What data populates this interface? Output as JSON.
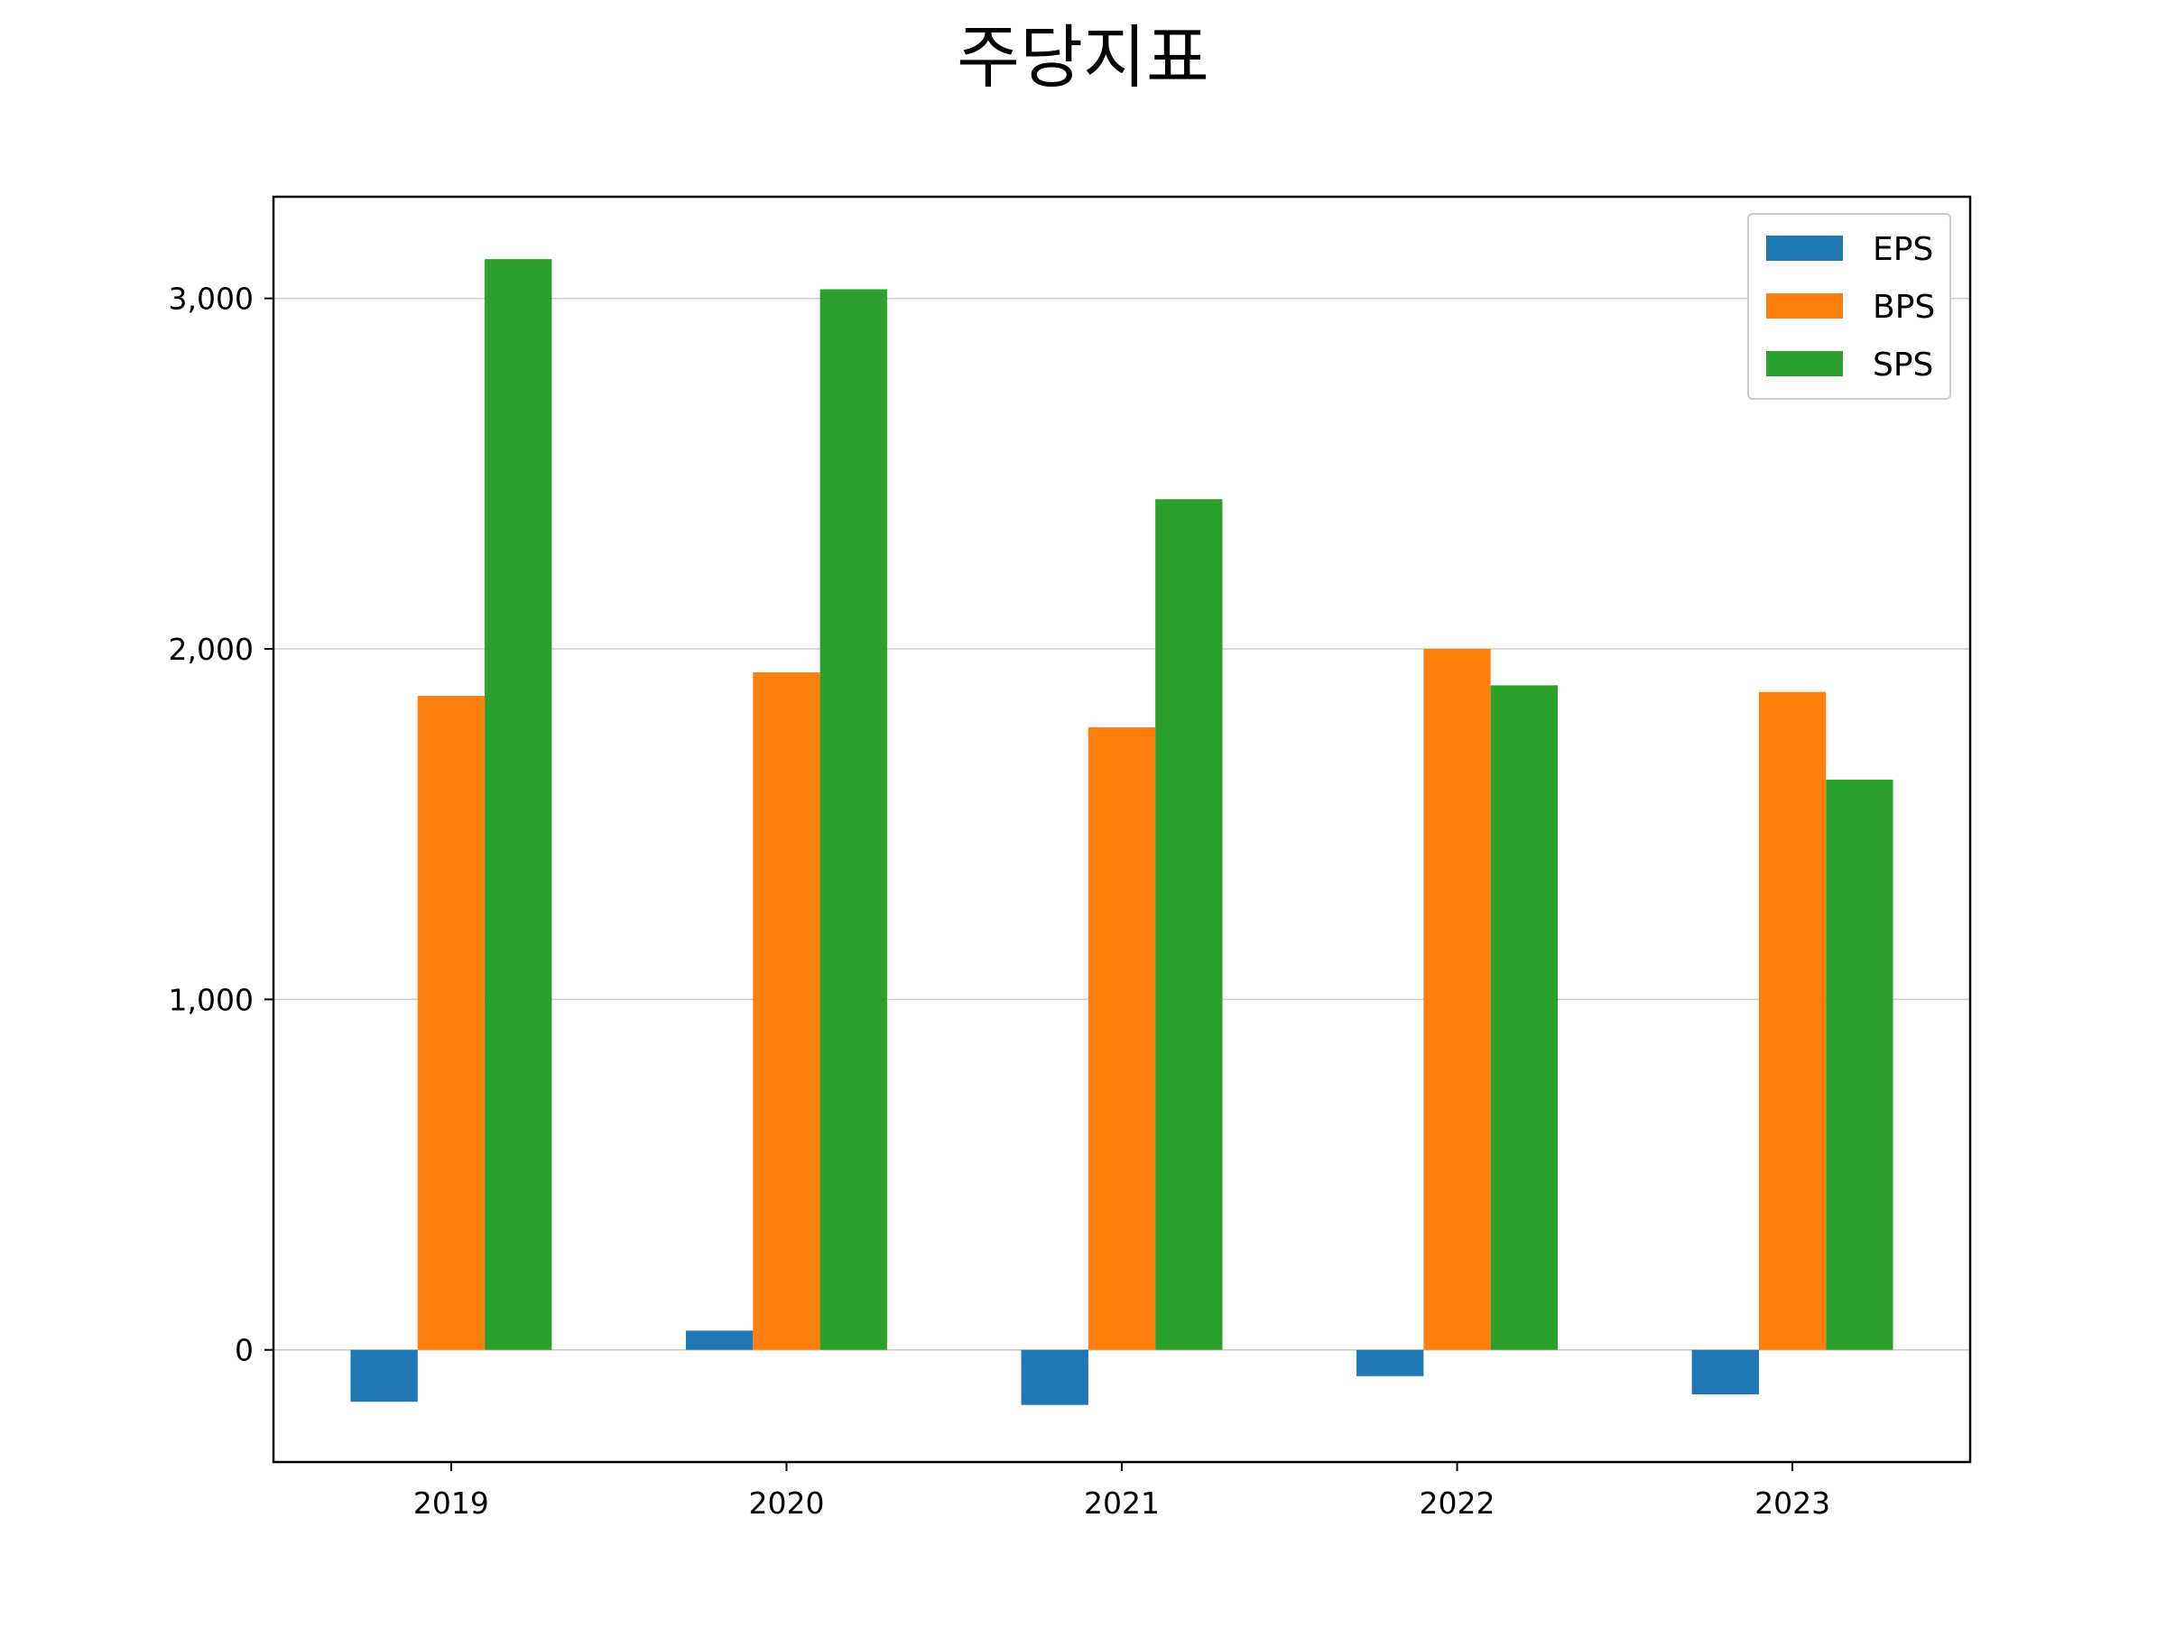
{
  "chart_data": {
    "type": "bar",
    "title": "주당지표",
    "xlabel": "",
    "ylabel": "",
    "categories": [
      "2019",
      "2020",
      "2021",
      "2022",
      "2023"
    ],
    "series": [
      {
        "name": "EPS",
        "color": "#1f77b4",
        "values": [
          -148,
          55,
          -157,
          -75,
          -127
        ]
      },
      {
        "name": "BPS",
        "color": "#ff7f0e",
        "values": [
          1866,
          1933,
          1776,
          2000,
          1877
        ]
      },
      {
        "name": "SPS",
        "color": "#2ca02c",
        "values": [
          3112,
          3026,
          2427,
          1896,
          1627
        ]
      }
    ],
    "ylim": [
      -320,
      3290
    ],
    "yticks": [
      0,
      1000,
      2000,
      3000
    ],
    "ytick_labels": [
      "0",
      "1,000",
      "2,000",
      "3,000"
    ],
    "grid": {
      "y": true,
      "x": false
    },
    "legend_position": "upper right"
  }
}
